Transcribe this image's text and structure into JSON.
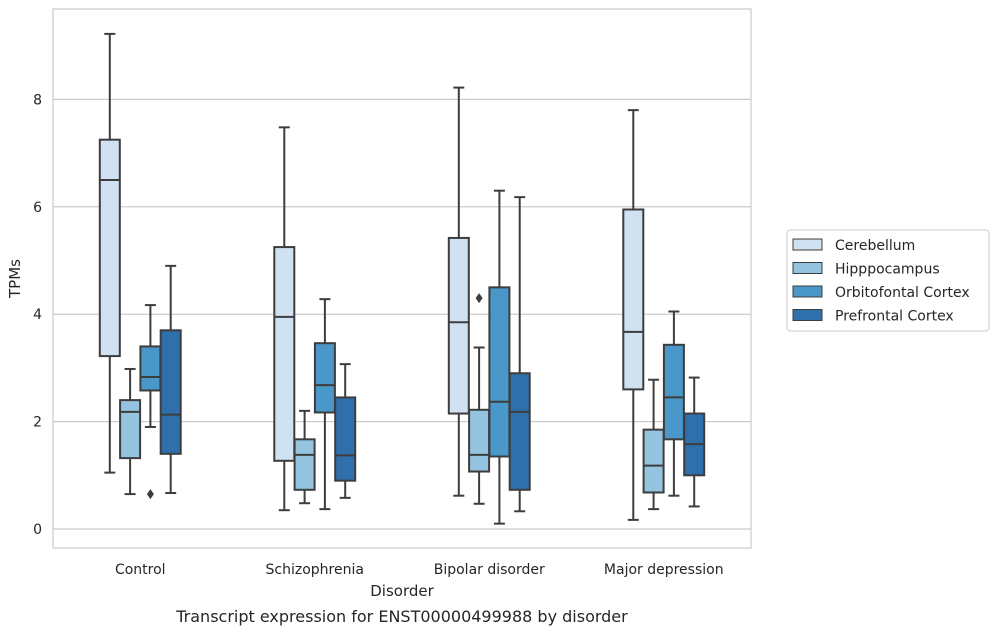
{
  "chart_data": {
    "type": "box",
    "xlabel": "Disorder",
    "ylabel": "TPMs",
    "caption": "Transcript expression for ENST00000499988 by disorder",
    "ylim": [
      -0.35,
      9.55
    ],
    "yticks": [
      0,
      2,
      4,
      6,
      8
    ],
    "grid": "horizontal",
    "legend_position": "right",
    "categories": [
      "Control",
      "Schizophrenia",
      "Bipolar disorder",
      "Major depression"
    ],
    "series": [
      {
        "name": "Cerebellum",
        "color": "#d0e1f2",
        "boxes": [
          {
            "whislo": 1.05,
            "q1": 3.22,
            "med": 6.5,
            "q3": 7.25,
            "whishi": 9.22,
            "fliers": []
          },
          {
            "whislo": 0.35,
            "q1": 1.27,
            "med": 3.95,
            "q3": 5.25,
            "whishi": 7.48,
            "fliers": []
          },
          {
            "whislo": 0.62,
            "q1": 2.15,
            "med": 3.85,
            "q3": 5.42,
            "whishi": 8.22,
            "fliers": []
          },
          {
            "whislo": 0.17,
            "q1": 2.6,
            "med": 3.67,
            "q3": 5.95,
            "whishi": 7.8,
            "fliers": []
          }
        ]
      },
      {
        "name": "Hipppocampus",
        "color": "#94c4df",
        "boxes": [
          {
            "whislo": 0.65,
            "q1": 1.32,
            "med": 2.18,
            "q3": 2.4,
            "whishi": 2.98,
            "fliers": []
          },
          {
            "whislo": 0.48,
            "q1": 0.73,
            "med": 1.38,
            "q3": 1.67,
            "whishi": 2.2,
            "fliers": []
          },
          {
            "whislo": 0.47,
            "q1": 1.07,
            "med": 1.38,
            "q3": 2.22,
            "whishi": 3.38,
            "fliers": [
              4.3
            ]
          },
          {
            "whislo": 0.37,
            "q1": 0.68,
            "med": 1.18,
            "q3": 1.85,
            "whishi": 2.78,
            "fliers": []
          }
        ]
      },
      {
        "name": "Orbitofontal Cortex",
        "color": "#4a98c9",
        "boxes": [
          {
            "whislo": 1.9,
            "q1": 2.58,
            "med": 2.83,
            "q3": 3.4,
            "whishi": 4.17,
            "fliers": [
              0.65
            ]
          },
          {
            "whislo": 0.37,
            "q1": 2.17,
            "med": 2.68,
            "q3": 3.46,
            "whishi": 4.28,
            "fliers": []
          },
          {
            "whislo": 0.1,
            "q1": 1.35,
            "med": 2.37,
            "q3": 4.5,
            "whishi": 6.3,
            "fliers": []
          },
          {
            "whislo": 0.62,
            "q1": 1.67,
            "med": 2.45,
            "q3": 3.43,
            "whishi": 4.05,
            "fliers": []
          }
        ]
      },
      {
        "name": "Prefrontal Cortex",
        "color": "#2e6fac",
        "boxes": [
          {
            "whislo": 0.67,
            "q1": 1.4,
            "med": 2.13,
            "q3": 3.7,
            "whishi": 4.9,
            "fliers": []
          },
          {
            "whislo": 0.58,
            "q1": 0.9,
            "med": 1.37,
            "q3": 2.45,
            "whishi": 3.07,
            "fliers": []
          },
          {
            "whislo": 0.33,
            "q1": 0.73,
            "med": 2.18,
            "q3": 2.9,
            "whishi": 6.18,
            "fliers": []
          },
          {
            "whislo": 0.42,
            "q1": 1.0,
            "med": 1.58,
            "q3": 2.15,
            "whishi": 2.82,
            "fliers": []
          }
        ]
      }
    ]
  }
}
